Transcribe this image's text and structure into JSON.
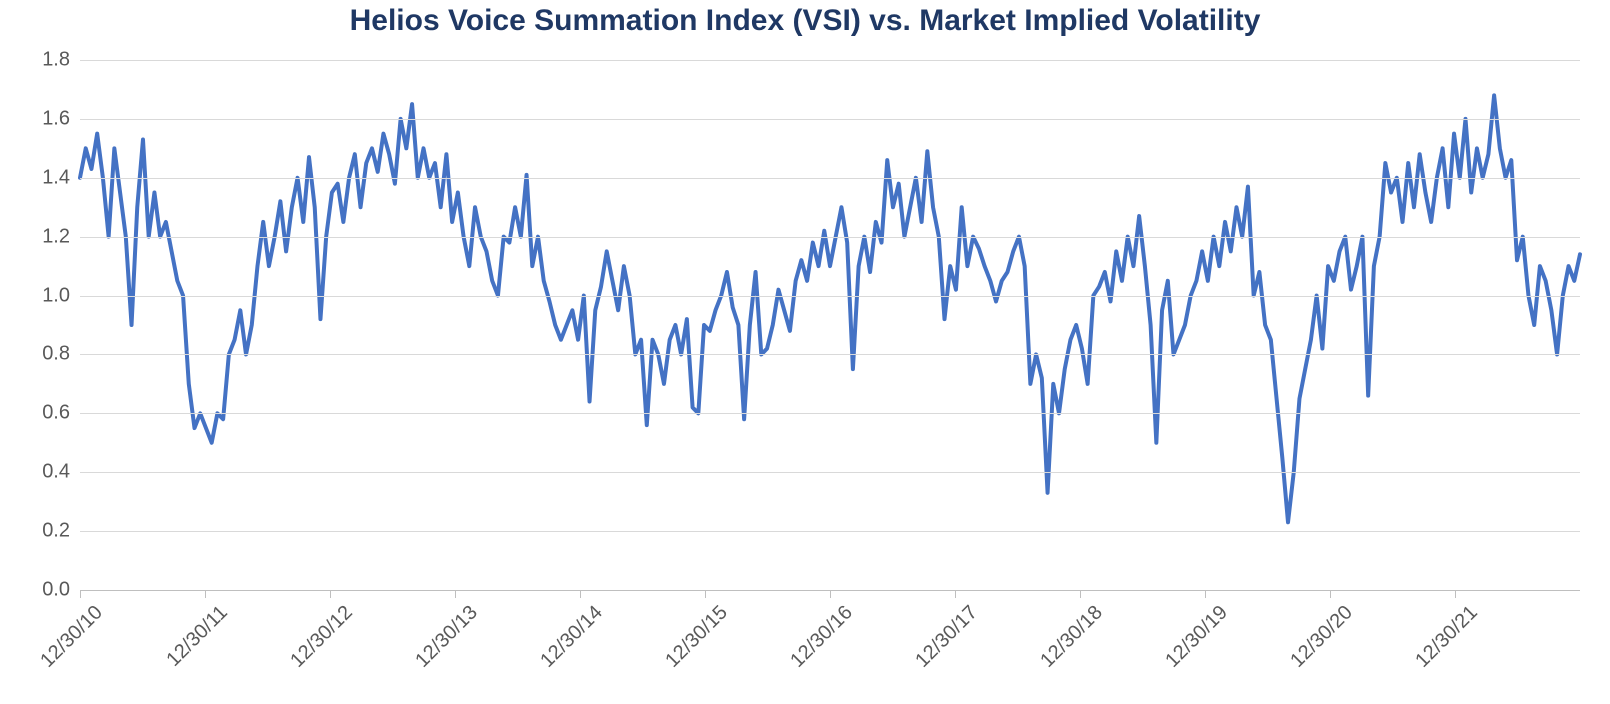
{
  "chart": {
    "type": "line",
    "title": "Helios Voice Summation Index (VSI) vs. Market Implied Volatility",
    "title_fontsize": 30,
    "title_color": "#1f3864",
    "label_fontsize": 20,
    "label_color": "#595959",
    "background_color": "#ffffff",
    "grid_color": "#d9d9d9",
    "axis_color": "#bfbfbf",
    "line_color": "#4472c4",
    "line_width": 4,
    "ylim": [
      0.0,
      1.8
    ],
    "ytick_step": 0.2,
    "y_ticks": [
      "0.0",
      "0.2",
      "0.4",
      "0.6",
      "0.8",
      "1.0",
      "1.2",
      "1.4",
      "1.6",
      "1.8"
    ],
    "x_labels": [
      "12/30/10",
      "12/30/11",
      "12/30/12",
      "12/30/13",
      "12/30/14",
      "12/30/15",
      "12/30/16",
      "12/30/17",
      "12/30/18",
      "12/30/19",
      "12/30/20",
      "12/30/21"
    ],
    "x_label_rotation_deg": -45,
    "values": [
      1.4,
      1.5,
      1.43,
      1.55,
      1.4,
      1.2,
      1.5,
      1.35,
      1.2,
      0.9,
      1.3,
      1.53,
      1.2,
      1.35,
      1.2,
      1.25,
      1.15,
      1.05,
      1.0,
      0.7,
      0.55,
      0.6,
      0.55,
      0.5,
      0.6,
      0.58,
      0.8,
      0.85,
      0.95,
      0.8,
      0.9,
      1.1,
      1.25,
      1.1,
      1.2,
      1.32,
      1.15,
      1.3,
      1.4,
      1.25,
      1.47,
      1.3,
      0.92,
      1.2,
      1.35,
      1.38,
      1.25,
      1.4,
      1.48,
      1.3,
      1.45,
      1.5,
      1.42,
      1.55,
      1.48,
      1.38,
      1.6,
      1.5,
      1.65,
      1.4,
      1.5,
      1.4,
      1.45,
      1.3,
      1.48,
      1.25,
      1.35,
      1.2,
      1.1,
      1.3,
      1.2,
      1.15,
      1.05,
      1.0,
      1.2,
      1.18,
      1.3,
      1.2,
      1.41,
      1.1,
      1.2,
      1.05,
      0.98,
      0.9,
      0.85,
      0.9,
      0.95,
      0.85,
      1.0,
      0.64,
      0.95,
      1.03,
      1.15,
      1.05,
      0.95,
      1.1,
      1.0,
      0.8,
      0.85,
      0.56,
      0.85,
      0.8,
      0.7,
      0.85,
      0.9,
      0.8,
      0.92,
      0.62,
      0.6,
      0.9,
      0.88,
      0.95,
      1.0,
      1.08,
      0.96,
      0.9,
      0.58,
      0.9,
      1.08,
      0.8,
      0.82,
      0.9,
      1.02,
      0.95,
      0.88,
      1.05,
      1.12,
      1.05,
      1.18,
      1.1,
      1.22,
      1.1,
      1.2,
      1.3,
      1.18,
      0.75,
      1.1,
      1.2,
      1.08,
      1.25,
      1.18,
      1.46,
      1.3,
      1.38,
      1.2,
      1.3,
      1.4,
      1.25,
      1.49,
      1.3,
      1.2,
      0.92,
      1.1,
      1.02,
      1.3,
      1.1,
      1.2,
      1.16,
      1.1,
      1.05,
      0.98,
      1.05,
      1.08,
      1.15,
      1.2,
      1.1,
      0.7,
      0.8,
      0.72,
      0.33,
      0.7,
      0.6,
      0.75,
      0.85,
      0.9,
      0.82,
      0.7,
      1.0,
      1.03,
      1.08,
      0.98,
      1.15,
      1.05,
      1.2,
      1.1,
      1.27,
      1.1,
      0.9,
      0.5,
      0.95,
      1.05,
      0.8,
      0.85,
      0.9,
      1.0,
      1.05,
      1.15,
      1.05,
      1.2,
      1.1,
      1.25,
      1.15,
      1.3,
      1.2,
      1.37,
      1.0,
      1.08,
      0.9,
      0.85,
      0.65,
      0.45,
      0.23,
      0.4,
      0.65,
      0.75,
      0.85,
      1.0,
      0.82,
      1.1,
      1.05,
      1.15,
      1.2,
      1.02,
      1.1,
      1.2,
      0.66,
      1.1,
      1.2,
      1.45,
      1.35,
      1.4,
      1.25,
      1.45,
      1.3,
      1.48,
      1.35,
      1.25,
      1.4,
      1.5,
      1.3,
      1.55,
      1.4,
      1.6,
      1.35,
      1.5,
      1.4,
      1.48,
      1.68,
      1.5,
      1.4,
      1.46,
      1.12,
      1.2,
      1.0,
      0.9,
      1.1,
      1.05,
      0.95,
      0.8,
      1.0,
      1.1,
      1.05,
      1.14
    ]
  }
}
